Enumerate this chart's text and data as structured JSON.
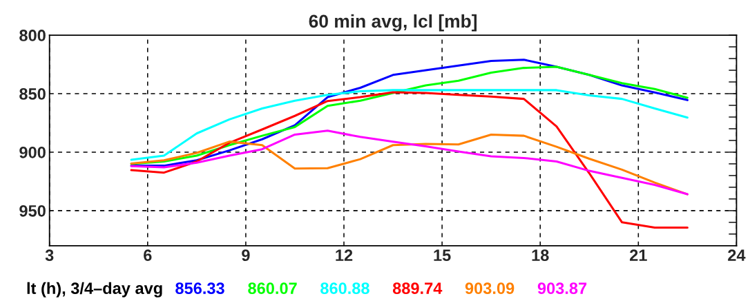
{
  "chart_data": {
    "type": "line",
    "title": "60 min avg, lcl [mb]",
    "xlabel": "lt (h), 3/4–day avg",
    "x": [
      5.5,
      6.5,
      7.5,
      8.5,
      9.5,
      10.5,
      11.5,
      12.5,
      13.5,
      14.5,
      15.5,
      16.5,
      17.5,
      18.5,
      19.5,
      20.5,
      21.5,
      22.5
    ],
    "series": [
      {
        "name": "856.33",
        "color": "#0000ff",
        "values": [
          911.6,
          911.6,
          907,
          898.5,
          889,
          877,
          853,
          845,
          834,
          830,
          826,
          822,
          821,
          827,
          834,
          843,
          849,
          855.5
        ]
      },
      {
        "name": "860.07",
        "color": "#00ff00",
        "values": [
          910,
          908,
          903,
          894,
          886,
          878.5,
          860.5,
          856,
          849.4,
          843,
          839,
          832,
          828,
          827,
          834,
          841,
          846,
          853.5
        ]
      },
      {
        "name": "860.88",
        "color": "#00ffff",
        "values": [
          906.5,
          903,
          884,
          872,
          862.7,
          856,
          851,
          848,
          847,
          847,
          847,
          847,
          847,
          847,
          851.5,
          854.5,
          862.7,
          870.5
        ]
      },
      {
        "name": "889.74",
        "color": "#ff0000",
        "values": [
          915.4,
          917.5,
          908,
          892,
          880.6,
          869,
          856.3,
          853,
          848.8,
          849.4,
          851,
          852.5,
          854.5,
          878,
          918,
          960,
          964.5,
          964.5
        ]
      },
      {
        "name": "903.09",
        "color": "#ff8000",
        "values": [
          909.7,
          907,
          900.6,
          891,
          894,
          914,
          913.7,
          906,
          894,
          893,
          893.4,
          885,
          886,
          895.4,
          905.6,
          915,
          926,
          936
        ]
      },
      {
        "name": "903.87",
        "color": "#ff00ff",
        "values": [
          912,
          913,
          909,
          903,
          897.5,
          885,
          881.6,
          887,
          891,
          895,
          899.5,
          903.6,
          905,
          908,
          916,
          922,
          928,
          936
        ]
      }
    ],
    "xlim": [
      3,
      24
    ],
    "xticks": [
      3,
      6,
      9,
      12,
      15,
      18,
      21,
      24
    ],
    "ylim": [
      980,
      800
    ],
    "yticks": [
      800,
      {
        "value": 810,
        "label": null
      },
      {
        "value": 820,
        "label": null
      },
      {
        "value": 830,
        "label": null
      },
      {
        "value": 840,
        "label": null
      },
      850,
      {
        "value": 860,
        "label": null
      },
      {
        "value": 870,
        "label": null
      },
      {
        "value": 880,
        "label": null
      },
      {
        "value": 890,
        "label": null
      },
      900,
      {
        "value": 910,
        "label": null
      },
      {
        "value": 920,
        "label": null
      },
      {
        "value": 930,
        "label": null
      },
      {
        "value": 940,
        "label": null
      },
      950,
      {
        "value": 960,
        "label": null
      },
      {
        "value": 970,
        "label": null
      }
    ],
    "grid": true,
    "legend": "bottom",
    "marker": "none",
    "line_style": "solid"
  }
}
